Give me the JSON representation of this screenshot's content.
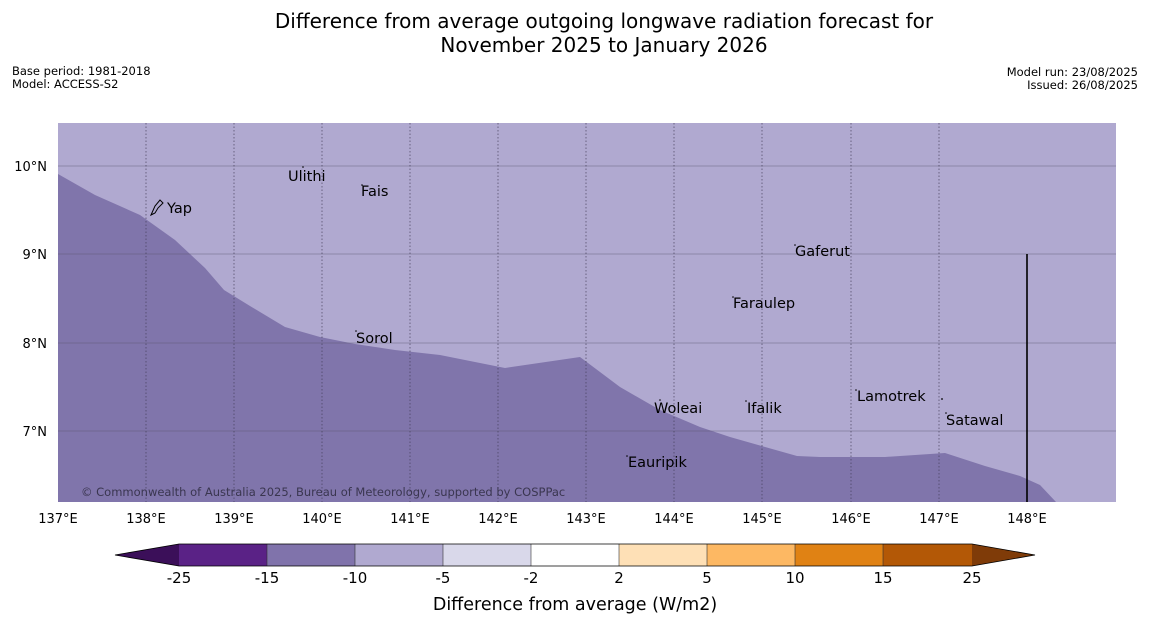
{
  "title_line1": "Difference from average outgoing longwave radiation forecast for",
  "title_line2": "November 2025 to January 2026",
  "info_left": {
    "base_period": "Base period: 1981-2018",
    "model": "Model: ACCESS-S2"
  },
  "info_right": {
    "model_run": "Model run: 23/08/2025",
    "issued": "Issued: 26/08/2025"
  },
  "map": {
    "lat_labels": [
      "10°N",
      "9°N",
      "8°N",
      "7°N"
    ],
    "lon_labels": [
      "137°E",
      "138°E",
      "139°E",
      "140°E",
      "141°E",
      "142°E",
      "143°E",
      "144°E",
      "145°E",
      "146°E",
      "147°E",
      "148°E"
    ],
    "places": [
      "Yap",
      "Ulithi",
      "Fais",
      "Gaferut",
      "Faraulep",
      "Sorol",
      "Woleai",
      "Ifalik",
      "Lamotrek",
      "Satawal",
      "Eauripik"
    ],
    "copyright": "© Commonwealth of Australia 2025, Bureau of Meteorology, supported by COSPPac",
    "region_colors": {
      "minus_10_to_minus_5": "#b0a9d0",
      "minus_15_to_minus_10": "#8075ab"
    }
  },
  "colorbar": {
    "tick_labels": [
      "-25",
      "-15",
      "-10",
      "-5",
      "-2",
      "2",
      "5",
      "10",
      "15",
      "25"
    ],
    "colors": [
      "#3b0f59",
      "#5a2286",
      "#8073ab",
      "#b0a9d0",
      "#d9d8ea",
      "#ffffff",
      "#fee0b6",
      "#fdb863",
      "#e08214",
      "#b35806",
      "#7f3b08"
    ],
    "label": "Difference from average (W/m2)"
  }
}
